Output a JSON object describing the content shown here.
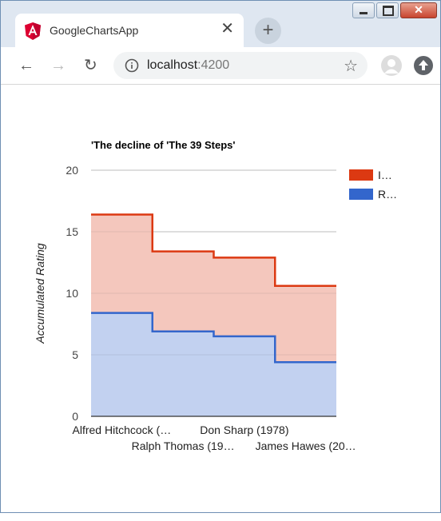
{
  "browser": {
    "tab_title": "GoogleChartsApp",
    "url_host": "localhost",
    "url_port": ":4200"
  },
  "colors": {
    "series1_line": "#dc3912",
    "series1_fill": "#f4c7bd",
    "series2_line": "#3366cc",
    "series2_fill": "#c2d1f0"
  },
  "chart_data": {
    "type": "area",
    "stepped": true,
    "stacked": true,
    "title": "'The decline of 'The 39 Steps'",
    "ylabel": "Accumulated Rating",
    "xlabel": "",
    "ylim": [
      0,
      20
    ],
    "yticks": [
      "0",
      "5",
      "10",
      "15",
      "20"
    ],
    "categories": [
      "Alfred Hitchcock (…",
      "Ralph Thomas (19…",
      "Don Sharp (1978)",
      "James Hawes (20…"
    ],
    "series": [
      {
        "name": "I…",
        "values": [
          8.0,
          6.5,
          6.4,
          6.2
        ]
      },
      {
        "name": "R…",
        "values": [
          8.4,
          6.9,
          6.5,
          4.4
        ]
      }
    ],
    "legend_position": "right"
  }
}
